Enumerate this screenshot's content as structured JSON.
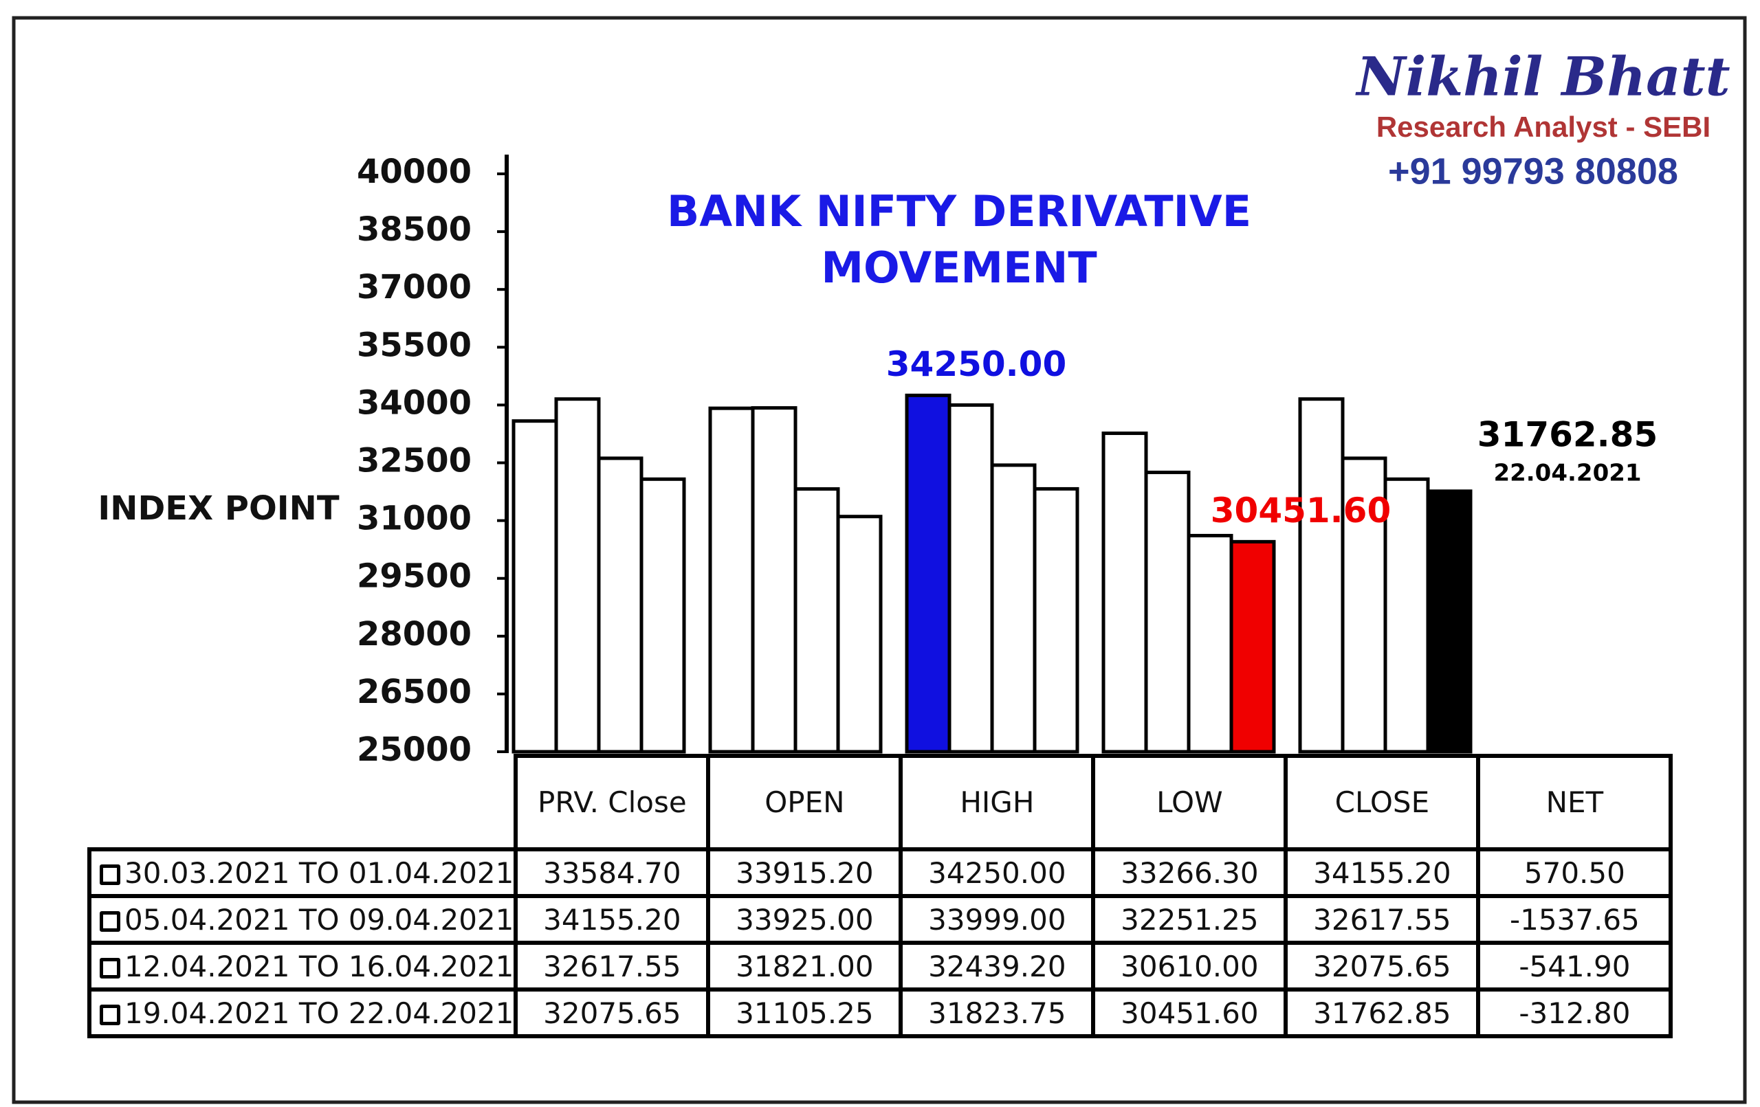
{
  "brand": {
    "name": "Nikhil Bhatt",
    "role": "Research Analyst - SEBI",
    "phone": "+91 99793 80808"
  },
  "chart_data": {
    "type": "bar",
    "title": [
      "BANK NIFTY DERIVATIVE",
      "MOVEMENT"
    ],
    "y_label": "INDEX POINT",
    "categories": [
      "PRV. Close",
      "OPEN",
      "HIGH",
      "LOW",
      "CLOSE"
    ],
    "ylim": [
      25000,
      40000
    ],
    "yticks": [
      25000,
      26500,
      28000,
      29500,
      31000,
      32500,
      34000,
      35500,
      37000,
      38500,
      40000
    ],
    "color": "#ffffff",
    "series": [
      {
        "name": "30.03.2021 TO 01.04.2021",
        "values": [
          33584.7,
          33915.2,
          34250,
          33266.3,
          34155.2
        ],
        "value_labels": [
          "33584.70",
          "33915.20",
          "34250.00",
          "33266.30",
          "34155.20"
        ]
      },
      {
        "name": "05.04.2021 TO 09.04.2021",
        "values": [
          34155.2,
          33925,
          33999,
          32251.25,
          32617.55
        ],
        "value_labels": [
          "34155.20",
          "33925.00",
          "33999.00",
          "32251.25",
          "32617.55"
        ]
      },
      {
        "name": "12.04.2021 TO 16.04.2021",
        "values": [
          32617.55,
          31821,
          32439.2,
          30610,
          32075.65
        ],
        "value_labels": [
          "32617.55",
          "31821.00",
          "32439.20",
          "30610.00",
          "32075.65"
        ]
      },
      {
        "name": "19.04.2021 TO 22.04.2021",
        "values": [
          32075.65,
          31105.25,
          31823.75,
          30451.6,
          31762.85
        ],
        "value_labels": [
          "32075.65",
          "31105.25",
          "31823.75",
          "30451.60",
          "31762.85"
        ]
      }
    ],
    "net": {
      "header": "NET",
      "values": [
        570.5,
        -1537.65,
        -541.9,
        -312.8
      ],
      "labels": [
        "570.50",
        "-1537.65",
        "-541.90",
        "-312.80"
      ]
    },
    "highlights": [
      {
        "series": 0,
        "category": 2,
        "color": "#1010e0",
        "label": "34250.00"
      },
      {
        "series": 3,
        "category": 3,
        "color": "#f00000",
        "label": "30451.60"
      },
      {
        "series": 3,
        "category": 4,
        "color": "#000000",
        "label": "31762.85",
        "sublabel": "22.04.2021"
      }
    ]
  }
}
